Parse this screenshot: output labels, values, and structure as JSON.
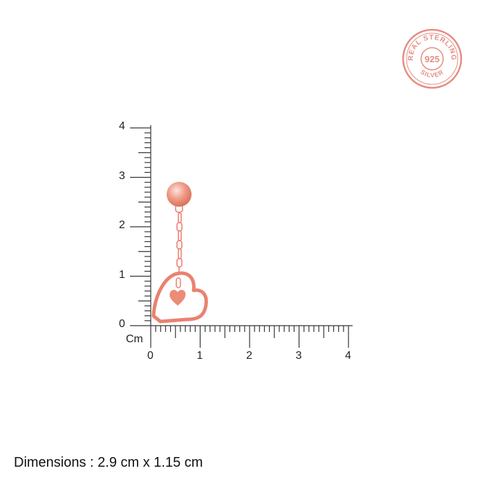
{
  "badge": {
    "top_text": "REAL STERLING",
    "center_text": "925",
    "bottom_text": "SILVER",
    "color": "#e58c82"
  },
  "ruler": {
    "unit_label": "Cm",
    "x_ticks": [
      "0",
      "1",
      "2",
      "3",
      "4"
    ],
    "y_ticks": [
      "0",
      "1",
      "2",
      "3",
      "4"
    ],
    "range_cm": [
      0,
      4
    ],
    "minor_divisions_per_cm": 10,
    "color": "#333333"
  },
  "product": {
    "color": "#e9826f",
    "height_cm": 2.9,
    "width_cm": 1.15
  },
  "dimensions": {
    "label": "Dimensions :",
    "value": "2.9 cm x 1.15 cm"
  }
}
